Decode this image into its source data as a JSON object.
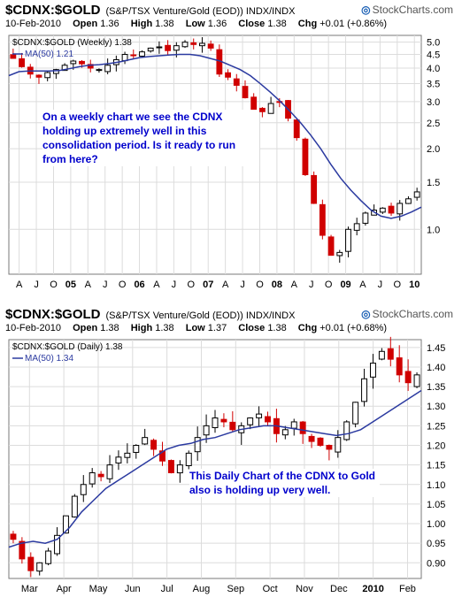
{
  "brand": "StockCharts.com",
  "colors": {
    "up": "#000000",
    "down": "#d00000",
    "ma": "#2b3aa0",
    "grid": "#dcdcdc",
    "annotation": "#0000cc"
  },
  "chart_data": [
    {
      "type": "candlestick",
      "symbol": "$CDNX:$GOLD",
      "description": "(S&P/TSX Venture/Gold (EOD))  INDX/INDX",
      "quote": {
        "date": "10-Feb-2010",
        "open_label": "Open",
        "open": "1.36",
        "high_label": "High",
        "high": "1.38",
        "low_label": "Low",
        "low": "1.36",
        "close_label": "Close",
        "close": "1.38",
        "chg_label": "Chg",
        "chg": "+0.01 (+0.86%)"
      },
      "legend": [
        {
          "name": "$CDNX:$GOLD (Weekly) 1.38"
        },
        {
          "name": "MA(50) 1.21"
        }
      ],
      "y_scale": "log",
      "ylim": [
        0.68,
        5.3
      ],
      "y_ticks": [
        "5.0",
        "4.5",
        "4.0",
        "3.5",
        "3.0",
        "2.5",
        "2.0",
        "1.5",
        "1.0"
      ],
      "x_ticks": [
        "A",
        "J",
        "O",
        "05",
        "A",
        "J",
        "O",
        "06",
        "A",
        "J",
        "O",
        "07",
        "A",
        "J",
        "O",
        "08",
        "A",
        "J",
        "O",
        "09",
        "A",
        "J",
        "O",
        "10"
      ],
      "x_ticks_bold": [
        "05",
        "06",
        "07",
        "08",
        "09",
        "10"
      ],
      "close": [
        4.35,
        4.05,
        3.8,
        3.7,
        3.85,
        3.95,
        4.1,
        4.25,
        4.15,
        4.0,
        3.95,
        4.1,
        4.3,
        4.5,
        4.45,
        4.6,
        4.75,
        4.8,
        4.65,
        4.85,
        5.0,
        4.9,
        4.95,
        4.75,
        3.8,
        3.7,
        3.45,
        3.1,
        2.8,
        2.75,
        2.95,
        3.0,
        2.6,
        2.2,
        1.6,
        1.25,
        0.95,
        0.8,
        0.82,
        1.0,
        1.05,
        1.15,
        1.18,
        1.2,
        1.15,
        1.25,
        1.3,
        1.38
      ],
      "ma50": [
        3.75,
        3.88,
        3.9,
        3.9,
        3.9,
        3.92,
        3.98,
        4.05,
        4.1,
        4.12,
        4.16,
        4.22,
        4.3,
        4.38,
        4.42,
        4.45,
        4.48,
        4.5,
        4.5,
        4.45,
        4.35,
        4.25,
        4.1,
        3.95,
        3.75,
        3.5,
        3.25,
        3.0,
        2.75,
        2.5,
        2.25,
        2.0,
        1.75,
        1.55,
        1.4,
        1.28,
        1.18,
        1.12,
        1.1,
        1.12,
        1.16,
        1.21
      ],
      "annotation": "On a weekly chart we see the CDNX holding up extremely well in this consolidation period. Is it ready to run from here?"
    },
    {
      "type": "candlestick",
      "symbol": "$CDNX:$GOLD",
      "description": "(S&P/TSX Venture/Gold (EOD))  INDX/INDX",
      "quote": {
        "date": "10-Feb-2010",
        "open_label": "Open",
        "open": "1.38",
        "high_label": "High",
        "high": "1.38",
        "low_label": "Low",
        "low": "1.37",
        "close_label": "Close",
        "close": "1.38",
        "chg_label": "Chg",
        "chg": "+0.01 (+0.68%)"
      },
      "legend": [
        {
          "name": "$CDNX:$GOLD (Daily) 1.38"
        },
        {
          "name": "MA(50) 1.34"
        }
      ],
      "y_scale": "linear",
      "ylim": [
        0.86,
        1.47
      ],
      "y_ticks": [
        "1.45",
        "1.40",
        "1.35",
        "1.30",
        "1.25",
        "1.20",
        "1.15",
        "1.10",
        "1.05",
        "1.00",
        "0.95",
        "0.90"
      ],
      "x_ticks": [
        "Mar",
        "Apr",
        "May",
        "Jun",
        "Jul",
        "Aug",
        "Sep",
        "Oct",
        "Nov",
        "Dec",
        "2010",
        "Feb"
      ],
      "x_ticks_bold": [
        "2010"
      ],
      "close": [
        0.96,
        0.91,
        0.88,
        0.9,
        0.93,
        0.97,
        1.02,
        1.07,
        1.1,
        1.13,
        1.12,
        1.15,
        1.17,
        1.18,
        1.2,
        1.22,
        1.19,
        1.16,
        1.13,
        1.15,
        1.18,
        1.22,
        1.25,
        1.27,
        1.26,
        1.24,
        1.25,
        1.27,
        1.28,
        1.26,
        1.23,
        1.24,
        1.26,
        1.23,
        1.21,
        1.2,
        1.19,
        1.22,
        1.26,
        1.31,
        1.37,
        1.41,
        1.44,
        1.42,
        1.38,
        1.36,
        1.38
      ],
      "ma50": [
        0.94,
        0.95,
        0.955,
        0.95,
        0.96,
        0.99,
        1.03,
        1.06,
        1.09,
        1.11,
        1.13,
        1.15,
        1.17,
        1.19,
        1.2,
        1.205,
        1.215,
        1.22,
        1.23,
        1.24,
        1.245,
        1.25,
        1.25,
        1.245,
        1.24,
        1.235,
        1.23,
        1.225,
        1.23,
        1.24,
        1.26,
        1.28,
        1.3,
        1.32,
        1.34
      ],
      "annotation": "This Daily Chart of the CDNX to Gold also is holding up very well."
    }
  ]
}
